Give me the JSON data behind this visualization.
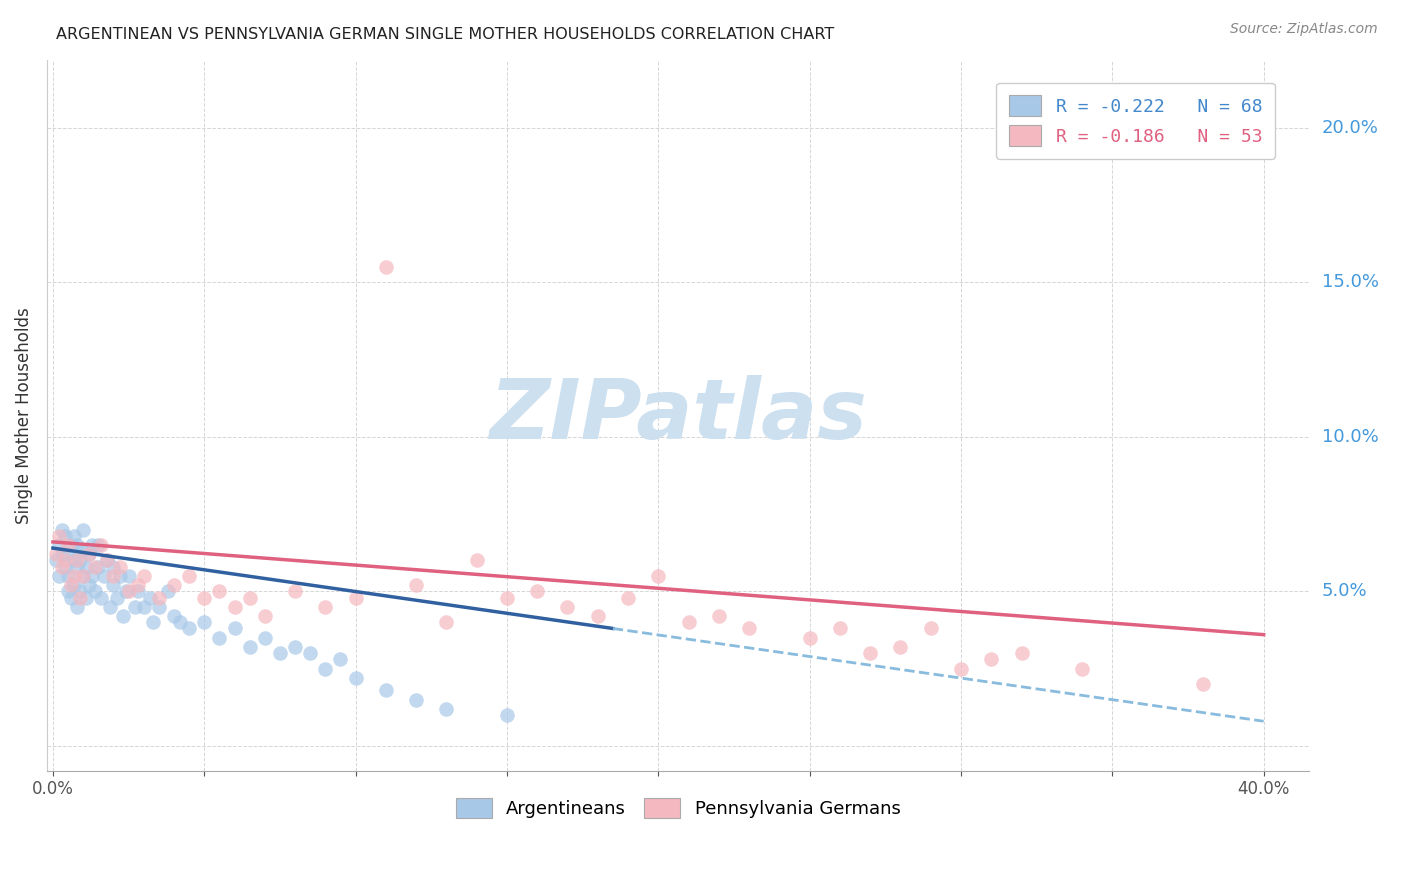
{
  "title": "ARGENTINEAN VS PENNSYLVANIA GERMAN SINGLE MOTHER HOUSEHOLDS CORRELATION CHART",
  "source": "Source: ZipAtlas.com",
  "ylabel": "Single Mother Households",
  "ytick_values": [
    0.0,
    0.05,
    0.1,
    0.15,
    0.2
  ],
  "xtick_values": [
    0.0,
    0.05,
    0.1,
    0.15,
    0.2,
    0.25,
    0.3,
    0.35,
    0.4
  ],
  "xlim": [
    -0.002,
    0.415
  ],
  "ylim": [
    -0.008,
    0.222
  ],
  "legend_label1": "R = -0.222   N = 68",
  "legend_label2": "R = -0.186   N = 53",
  "legend_labels_bottom": [
    "Argentineans",
    "Pennsylvania Germans"
  ],
  "color_blue": "#a8c8e8",
  "color_pink": "#f4b8c0",
  "color_blue_line": "#3060a0",
  "color_pink_line": "#e06080",
  "color_blue_text": "#4488cc",
  "color_pink_text": "#e06080",
  "color_ytick": "#4499dd",
  "watermark": "ZIPatlas",
  "watermark_color": "#cce0f0",
  "argentinean_x": [
    0.001,
    0.002,
    0.002,
    0.003,
    0.003,
    0.004,
    0.004,
    0.005,
    0.005,
    0.005,
    0.006,
    0.006,
    0.007,
    0.007,
    0.007,
    0.008,
    0.008,
    0.008,
    0.009,
    0.009,
    0.01,
    0.01,
    0.01,
    0.011,
    0.011,
    0.012,
    0.012,
    0.013,
    0.013,
    0.014,
    0.015,
    0.015,
    0.016,
    0.017,
    0.018,
    0.019,
    0.02,
    0.02,
    0.021,
    0.022,
    0.023,
    0.024,
    0.025,
    0.027,
    0.028,
    0.03,
    0.032,
    0.033,
    0.035,
    0.038,
    0.04,
    0.042,
    0.045,
    0.05,
    0.055,
    0.06,
    0.065,
    0.07,
    0.075,
    0.08,
    0.085,
    0.09,
    0.095,
    0.1,
    0.11,
    0.12,
    0.13,
    0.15
  ],
  "argentinean_y": [
    0.06,
    0.055,
    0.065,
    0.07,
    0.062,
    0.058,
    0.068,
    0.05,
    0.055,
    0.062,
    0.048,
    0.065,
    0.052,
    0.06,
    0.068,
    0.045,
    0.058,
    0.065,
    0.05,
    0.06,
    0.055,
    0.063,
    0.07,
    0.048,
    0.058,
    0.052,
    0.062,
    0.055,
    0.065,
    0.05,
    0.058,
    0.065,
    0.048,
    0.055,
    0.06,
    0.045,
    0.052,
    0.058,
    0.048,
    0.055,
    0.042,
    0.05,
    0.055,
    0.045,
    0.05,
    0.045,
    0.048,
    0.04,
    0.045,
    0.05,
    0.042,
    0.04,
    0.038,
    0.04,
    0.035,
    0.038,
    0.032,
    0.035,
    0.03,
    0.032,
    0.03,
    0.025,
    0.028,
    0.022,
    0.018,
    0.015,
    0.012,
    0.01
  ],
  "penn_german_x": [
    0.001,
    0.002,
    0.003,
    0.004,
    0.005,
    0.006,
    0.007,
    0.008,
    0.009,
    0.01,
    0.012,
    0.014,
    0.016,
    0.018,
    0.02,
    0.022,
    0.025,
    0.028,
    0.03,
    0.035,
    0.04,
    0.045,
    0.05,
    0.055,
    0.06,
    0.065,
    0.07,
    0.08,
    0.09,
    0.1,
    0.11,
    0.12,
    0.13,
    0.14,
    0.15,
    0.16,
    0.17,
    0.18,
    0.19,
    0.2,
    0.21,
    0.22,
    0.23,
    0.25,
    0.26,
    0.27,
    0.28,
    0.29,
    0.3,
    0.31,
    0.32,
    0.34,
    0.38
  ],
  "penn_german_y": [
    0.062,
    0.068,
    0.058,
    0.06,
    0.065,
    0.052,
    0.055,
    0.06,
    0.048,
    0.055,
    0.062,
    0.058,
    0.065,
    0.06,
    0.055,
    0.058,
    0.05,
    0.052,
    0.055,
    0.048,
    0.052,
    0.055,
    0.048,
    0.05,
    0.045,
    0.048,
    0.042,
    0.05,
    0.045,
    0.048,
    0.155,
    0.052,
    0.04,
    0.06,
    0.048,
    0.05,
    0.045,
    0.042,
    0.048,
    0.055,
    0.04,
    0.042,
    0.038,
    0.035,
    0.038,
    0.03,
    0.032,
    0.038,
    0.025,
    0.028,
    0.03,
    0.025,
    0.02
  ]
}
